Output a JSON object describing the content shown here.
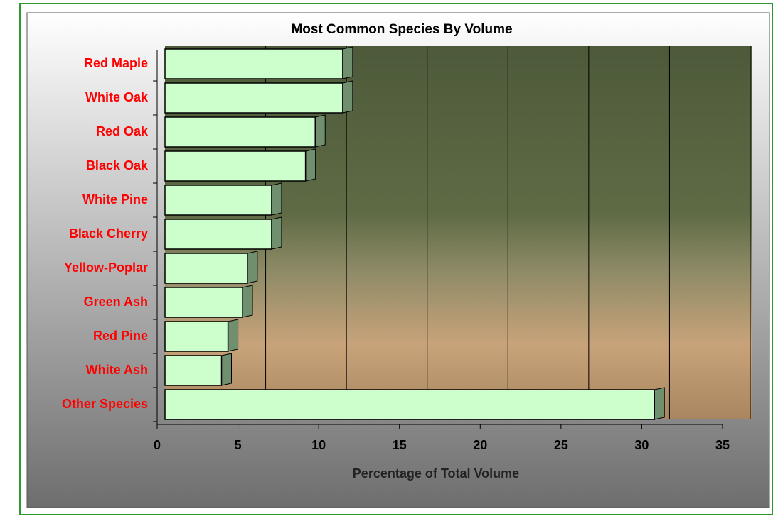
{
  "chart_data": {
    "type": "bar",
    "orientation": "horizontal",
    "title": "Most Common Species By Volume",
    "x_label": "Percentage of Total Volume",
    "categories": [
      "Red Maple",
      "White Oak",
      "Red Oak",
      "Black Oak",
      "White Pine",
      "Black Cherry",
      "Yellow-Poplar",
      "Green Ash",
      "Red Pine",
      "White Ash",
      "Other Species"
    ],
    "values": [
      11.0,
      11.0,
      9.3,
      8.7,
      6.6,
      6.6,
      5.1,
      4.8,
      3.9,
      3.5,
      30.3
    ],
    "color": "#ccffcc",
    "xlim": [
      0,
      35
    ],
    "xticks": [
      0,
      5,
      10,
      15,
      20,
      25,
      30,
      35
    ],
    "grid": true
  }
}
